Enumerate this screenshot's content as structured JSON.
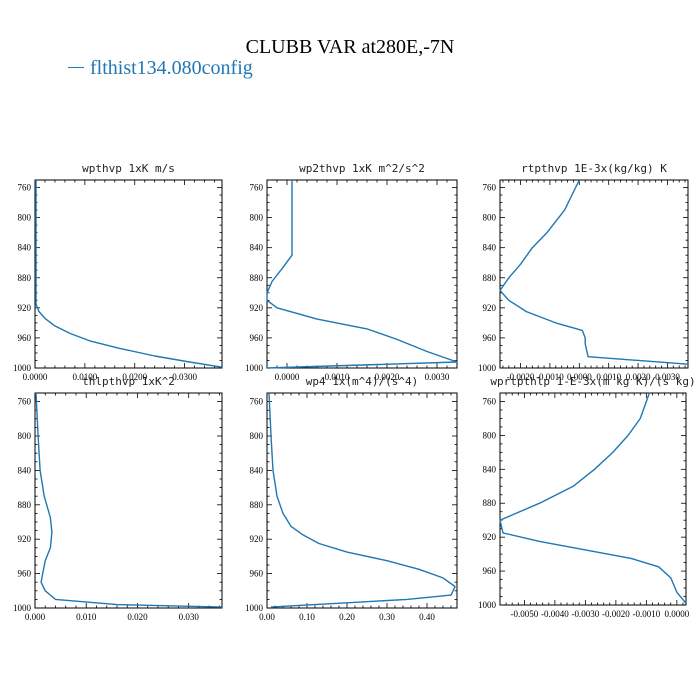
{
  "title": "CLUBB VAR at280E,-7N",
  "legend": {
    "label": "flthist134.080config",
    "color": "#1f77b4"
  },
  "chart_data": [
    {
      "type": "line",
      "title": "wpthvp   1xK  m/s",
      "xlim": [
        0.0,
        0.0375
      ],
      "ylim": [
        1000,
        750
      ],
      "xticks": [
        "0.0000",
        "0.0100",
        "0.0200",
        "0.0300"
      ],
      "xtick_values": [
        0.0,
        0.01,
        0.02,
        0.03
      ],
      "yticks": [
        "760",
        "800",
        "840",
        "880",
        "920",
        "960",
        "1000"
      ],
      "ytick_values": [
        760,
        800,
        840,
        880,
        920,
        960,
        1000
      ],
      "series": [
        {
          "color": "#1f77b4",
          "points": [
            [
              0.0002,
              750
            ],
            [
              0.0002,
              800
            ],
            [
              0.0002,
              860
            ],
            [
              0.0002,
              900
            ],
            [
              0.0002,
              915
            ],
            [
              0.0008,
              925
            ],
            [
              0.002,
              934
            ],
            [
              0.004,
              944
            ],
            [
              0.007,
              954
            ],
            [
              0.011,
              964
            ],
            [
              0.017,
              974
            ],
            [
              0.024,
              984
            ],
            [
              0.031,
              992
            ],
            [
              0.0375,
              999
            ]
          ]
        }
      ]
    },
    {
      "type": "line",
      "title": "wp2thvp   1xK  m^2/s^2",
      "xlim": [
        -0.0004,
        0.0034
      ],
      "ylim": [
        1000,
        750
      ],
      "xticks": [
        "0.0000",
        "0.0010",
        "0.0020",
        "0.0030"
      ],
      "xtick_values": [
        0.0,
        0.001,
        0.002,
        0.003
      ],
      "yticks": [
        "760",
        "800",
        "840",
        "880",
        "920",
        "960",
        "1000"
      ],
      "ytick_values": [
        760,
        800,
        840,
        880,
        920,
        960,
        1000
      ],
      "series": [
        {
          "color": "#1f77b4",
          "points": [
            [
              0.0001,
              750
            ],
            [
              0.0001,
              800
            ],
            [
              0.0001,
              835
            ],
            [
              0.0001,
              850
            ],
            [
              -0.0001,
              868
            ],
            [
              -0.0003,
              885
            ],
            [
              -0.0004,
              900
            ],
            [
              -0.0004,
              910
            ],
            [
              -0.0002,
              920
            ],
            [
              0.0006,
              935
            ],
            [
              0.0016,
              948
            ],
            [
              0.0022,
              962
            ],
            [
              0.0028,
              978
            ],
            [
              0.0034,
              992
            ],
            [
              -0.0004,
              1000
            ]
          ]
        }
      ]
    },
    {
      "type": "line",
      "title": "rtpthvp   1E-3x(kg/kg) K",
      "xlim": [
        -0.0027,
        0.0037
      ],
      "ylim": [
        1000,
        750
      ],
      "xticks": [
        "-0.0020",
        "-0.0010",
        "0.0000",
        "0.0010",
        "0.0020",
        "0.0030"
      ],
      "xtick_values": [
        -0.002,
        -0.001,
        0.0,
        0.001,
        0.002,
        0.003
      ],
      "yticks": [
        "760",
        "800",
        "840",
        "880",
        "920",
        "960",
        "1000"
      ],
      "ytick_values": [
        760,
        800,
        840,
        880,
        920,
        960,
        1000
      ],
      "series": [
        {
          "color": "#1f77b4",
          "points": [
            [
              0.0,
              750
            ],
            [
              -0.0005,
              790
            ],
            [
              -0.0011,
              820
            ],
            [
              -0.0016,
              840
            ],
            [
              -0.002,
              862
            ],
            [
              -0.0024,
              880
            ],
            [
              -0.0027,
              897
            ],
            [
              -0.0024,
              910
            ],
            [
              -0.0018,
              925
            ],
            [
              -0.0008,
              940
            ],
            [
              0.0001,
              950
            ],
            [
              0.0002,
              960
            ],
            [
              0.0002,
              968
            ],
            [
              0.0003,
              985
            ],
            [
              0.0037,
              995
            ]
          ]
        }
      ]
    },
    {
      "type": "line",
      "title": "thlpthvp   1xK^2",
      "xlim": [
        0.0,
        0.0365
      ],
      "ylim": [
        1000,
        750
      ],
      "xticks": [
        "0.000",
        "0.010",
        "0.020",
        "0.030"
      ],
      "xtick_values": [
        0.0,
        0.01,
        0.02,
        0.03
      ],
      "yticks": [
        "760",
        "800",
        "840",
        "880",
        "920",
        "960",
        "1000"
      ],
      "ytick_values": [
        760,
        800,
        840,
        880,
        920,
        960,
        1000
      ],
      "series": [
        {
          "color": "#1f77b4",
          "points": [
            [
              0.0002,
              750
            ],
            [
              0.0006,
              800
            ],
            [
              0.001,
              840
            ],
            [
              0.0018,
              870
            ],
            [
              0.003,
              895
            ],
            [
              0.0033,
              912
            ],
            [
              0.003,
              930
            ],
            [
              0.002,
              945
            ],
            [
              0.0015,
              960
            ],
            [
              0.0012,
              970
            ],
            [
              0.002,
              980
            ],
            [
              0.004,
              990
            ],
            [
              0.016,
              996
            ],
            [
              0.0365,
              999
            ]
          ]
        }
      ]
    },
    {
      "type": "line",
      "title": "wp4   1x(m^4)/(s^4)",
      "xlim": [
        0.0,
        0.475
      ],
      "ylim": [
        1000,
        750
      ],
      "xticks": [
        "0.00",
        "0.10",
        "0.20",
        "0.30",
        "0.40"
      ],
      "xtick_values": [
        0.0,
        0.1,
        0.2,
        0.3,
        0.4
      ],
      "yticks": [
        "760",
        "800",
        "840",
        "880",
        "920",
        "960",
        "1000"
      ],
      "ytick_values": [
        760,
        800,
        840,
        880,
        920,
        960,
        1000
      ],
      "series": [
        {
          "color": "#1f77b4",
          "points": [
            [
              0.005,
              750
            ],
            [
              0.01,
              800
            ],
            [
              0.015,
              840
            ],
            [
              0.025,
              870
            ],
            [
              0.04,
              890
            ],
            [
              0.06,
              905
            ],
            [
              0.09,
              915
            ],
            [
              0.13,
              925
            ],
            [
              0.2,
              935
            ],
            [
              0.3,
              945
            ],
            [
              0.38,
              955
            ],
            [
              0.44,
              965
            ],
            [
              0.47,
              975
            ],
            [
              0.46,
              985
            ],
            [
              0.35,
              990
            ],
            [
              0.2,
              994
            ],
            [
              0.08,
              997
            ],
            [
              0.01,
              999
            ]
          ]
        }
      ]
    },
    {
      "type": "line",
      "title": "wprtpthlp   1-E-3x(m kg K)/(s kg)",
      "xlim": [
        -0.0058,
        0.0003
      ],
      "ylim": [
        1000,
        750
      ],
      "xticks": [
        "-0.0050",
        "-0.0040",
        "-0.0030",
        "-0.0020",
        "-0.0010",
        "0.0000"
      ],
      "xtick_values": [
        -0.005,
        -0.004,
        -0.003,
        -0.002,
        -0.001,
        0.0
      ],
      "yticks": [
        "760",
        "800",
        "840",
        "880",
        "920",
        "960",
        "1000"
      ],
      "ytick_values": [
        760,
        800,
        840,
        880,
        920,
        960,
        1000
      ],
      "series": [
        {
          "color": "#1f77b4",
          "points": [
            [
              -0.0009,
              750
            ],
            [
              -0.0012,
              780
            ],
            [
              -0.0016,
              800
            ],
            [
              -0.0021,
              820
            ],
            [
              -0.0027,
              840
            ],
            [
              -0.0034,
              860
            ],
            [
              -0.0045,
              880
            ],
            [
              -0.0058,
              900
            ],
            [
              -0.0057,
              915
            ],
            [
              -0.0045,
              925
            ],
            [
              -0.003,
              935
            ],
            [
              -0.0015,
              945
            ],
            [
              -0.0006,
              955
            ],
            [
              -0.0002,
              968
            ],
            [
              0.0,
              985
            ],
            [
              0.0003,
              998
            ]
          ]
        }
      ]
    }
  ]
}
